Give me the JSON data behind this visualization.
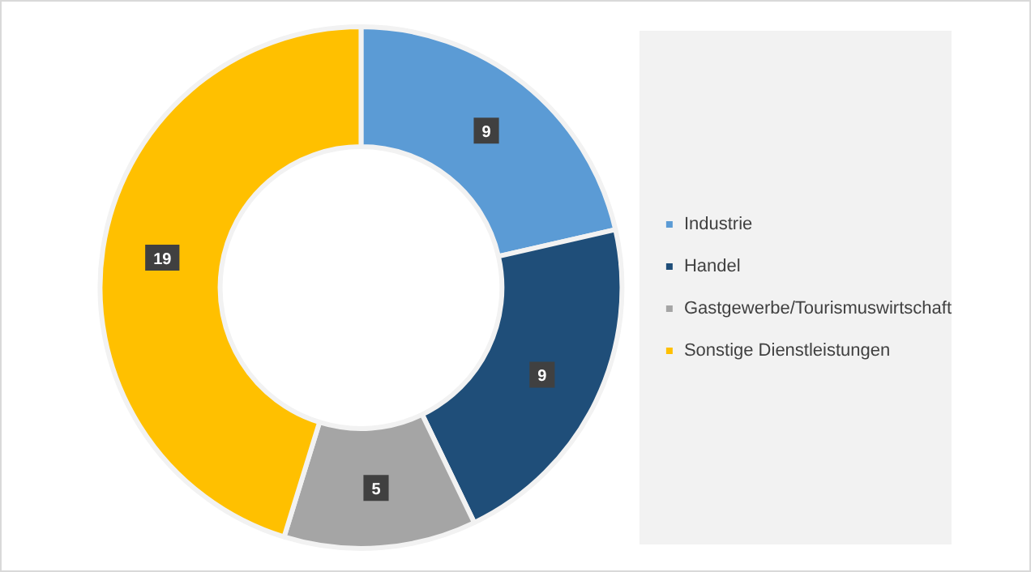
{
  "chart_data": {
    "type": "donut",
    "categories": [
      "Industrie",
      "Handel",
      "Gastgewerbe/Tourismuswirtschaft",
      "Sonstige Dienstleistungen"
    ],
    "values": [
      9,
      9,
      5,
      19
    ],
    "colors": [
      "#5b9bd5",
      "#1f4e79",
      "#a5a5a5",
      "#ffc000"
    ],
    "data_labels": true,
    "legend": "right"
  }
}
